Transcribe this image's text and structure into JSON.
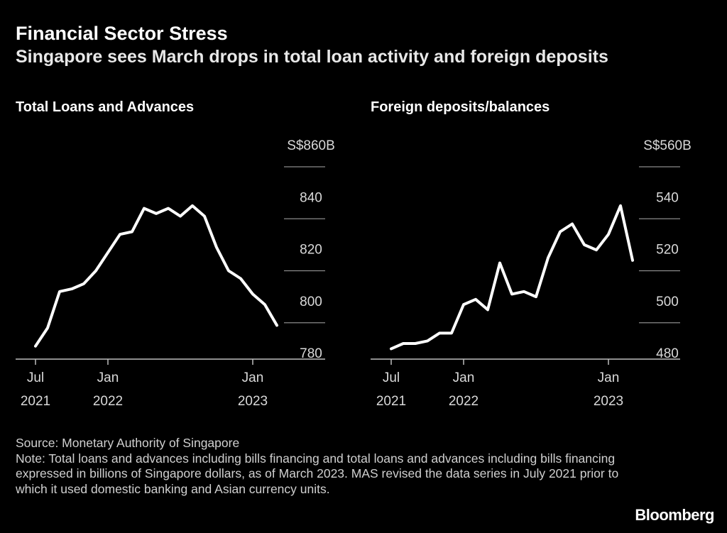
{
  "header": {
    "title": "Financial Sector Stress",
    "subtitle": "Singapore sees March drops in total loan activity and foreign deposits"
  },
  "chart_data": [
    {
      "type": "line",
      "title": "Total Loans and Advances",
      "xlabel": "",
      "ylabel": "",
      "unit_label": "S$860B",
      "ylim": [
        775,
        860
      ],
      "yticks": [
        780,
        800,
        820,
        840,
        860
      ],
      "ytick_labels": [
        "780",
        "800",
        "820",
        "840",
        "S$860B"
      ],
      "xticks": [
        {
          "index": 0,
          "line1": "Jul",
          "line2": "2021"
        },
        {
          "index": 6,
          "line1": "Jan",
          "line2": "2022"
        },
        {
          "index": 18,
          "line1": "Jan",
          "line2": "2023"
        }
      ],
      "x": [
        "2021-07",
        "2021-08",
        "2021-09",
        "2021-10",
        "2021-11",
        "2021-12",
        "2022-01",
        "2022-02",
        "2022-03",
        "2022-04",
        "2022-05",
        "2022-06",
        "2022-07",
        "2022-08",
        "2022-09",
        "2022-10",
        "2022-11",
        "2022-12",
        "2023-01",
        "2023-02",
        "2023-03"
      ],
      "values": [
        785,
        792,
        806,
        807,
        809,
        814,
        821,
        828,
        829,
        838,
        836,
        838,
        835,
        839,
        835,
        823,
        814,
        811,
        805,
        801,
        793
      ],
      "color": "#ffffff"
    },
    {
      "type": "line",
      "title": "Foreign deposits/balances",
      "xlabel": "",
      "ylabel": "",
      "unit_label": "S$560B",
      "ylim": [
        475,
        560
      ],
      "yticks": [
        480,
        500,
        520,
        540,
        560
      ],
      "ytick_labels": [
        "480",
        "500",
        "520",
        "540",
        "S$560B"
      ],
      "xticks": [
        {
          "index": 0,
          "line1": "Jul",
          "line2": "2021"
        },
        {
          "index": 6,
          "line1": "Jan",
          "line2": "2022"
        },
        {
          "index": 18,
          "line1": "Jan",
          "line2": "2023"
        }
      ],
      "x": [
        "2021-07",
        "2021-08",
        "2021-09",
        "2021-10",
        "2021-11",
        "2021-12",
        "2022-01",
        "2022-02",
        "2022-03",
        "2022-04",
        "2022-05",
        "2022-06",
        "2022-07",
        "2022-08",
        "2022-09",
        "2022-10",
        "2022-11",
        "2022-12",
        "2023-01",
        "2023-02",
        "2023-03"
      ],
      "values": [
        484,
        486,
        486,
        487,
        490,
        490,
        501,
        503,
        499,
        517,
        505,
        506,
        504,
        519,
        529,
        532,
        524,
        522,
        528,
        539,
        518
      ],
      "color": "#ffffff"
    }
  ],
  "footer": {
    "source": "Source: Monetary Authority of Singapore",
    "note": "Note: Total loans and advances including bills financing and total loans and advances including bills financing expressed in billions of Singapore dollars, as of March 2023. MAS revised the data series in July 2021 prior to which it used domestic banking and Asian currency units."
  },
  "brand": "Bloomberg"
}
